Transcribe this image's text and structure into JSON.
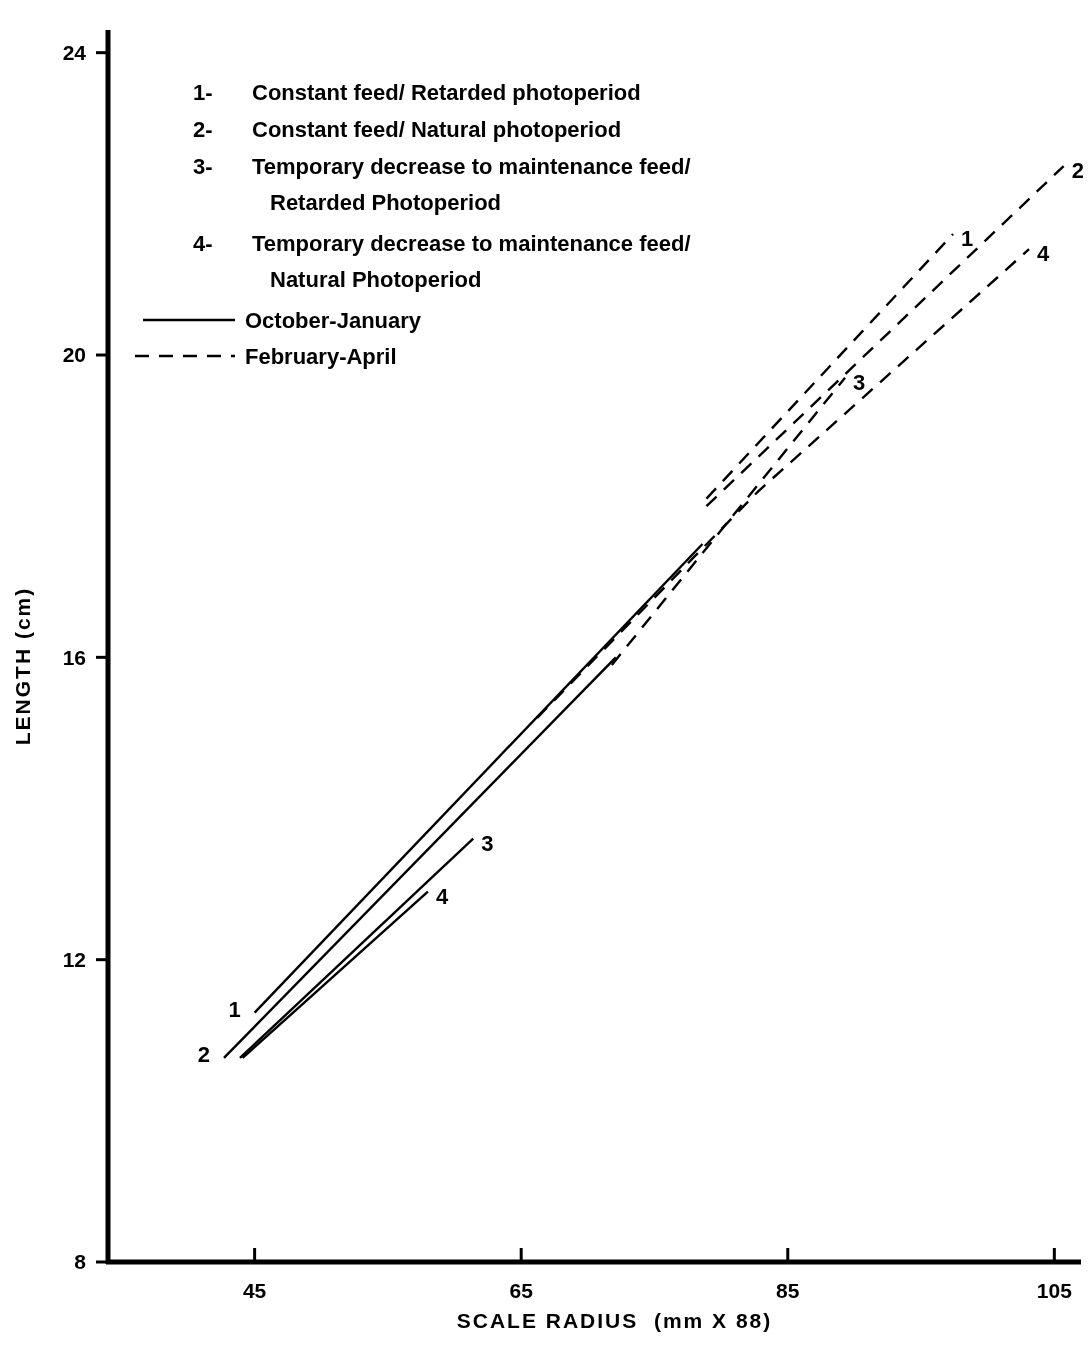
{
  "chart_data": {
    "type": "line",
    "xlabel": "SCALE RADIUS  (mm X 88)",
    "ylabel": "LENGTH (cm)",
    "xlim": [
      34,
      107
    ],
    "xticks": [
      45,
      65,
      85,
      105
    ],
    "ylim": [
      8,
      24.3
    ],
    "yticks": [
      8,
      12,
      16,
      20,
      24
    ],
    "grid": false,
    "marker": "none",
    "series": [
      {
        "name": "1",
        "color": "#000000",
        "line_style": "solid",
        "x": [
          78.6,
          45
        ],
        "values": [
          17.5,
          11.3
        ]
      },
      {
        "name": "2",
        "color": "#000000",
        "line_style": "solid",
        "x": [
          72.1,
          42.7
        ],
        "values": [
          16,
          10.7
        ]
      },
      {
        "name": "3",
        "color": "#000000",
        "line_style": "solid",
        "x": [
          43.9,
          61.4
        ],
        "values": [
          10.7,
          13.6
        ]
      },
      {
        "name": "4",
        "color": "#000000",
        "line_style": "solid",
        "x": [
          44.1,
          58
        ],
        "values": [
          10.7,
          12.9
        ]
      },
      {
        "name": "1",
        "color": "#000000",
        "line_style": "dashed",
        "x": [
          78.9,
          97.4
        ],
        "values": [
          18.1,
          21.6
        ]
      },
      {
        "name": "2",
        "color": "#000000",
        "line_style": "dashed",
        "x": [
          78.9,
          105.7
        ],
        "values": [
          18,
          22.5
        ]
      },
      {
        "name": "3",
        "color": "#000000",
        "line_style": "dashed",
        "x": [
          71.8,
          78.7,
          89.3
        ],
        "values": [
          15.9,
          17.4,
          19.7
        ]
      },
      {
        "name": "4",
        "color": "#000000",
        "line_style": "dashed",
        "x": [
          66.2,
          82.8,
          103.1
        ],
        "values": [
          15.2,
          18.2,
          21.4
        ]
      }
    ],
    "annotations": [
      "1-  Constant feed/ Retarded photoperiod",
      "2-  Constant feed/ Natural photoperiod",
      "3-  Temporary decrease to maintenance feed/\n Retarded Photoperiod",
      "4-  Temporary decrease to maintenance feed/\n Natural Photoperiod",
      "October-January",
      "February-April"
    ]
  }
}
